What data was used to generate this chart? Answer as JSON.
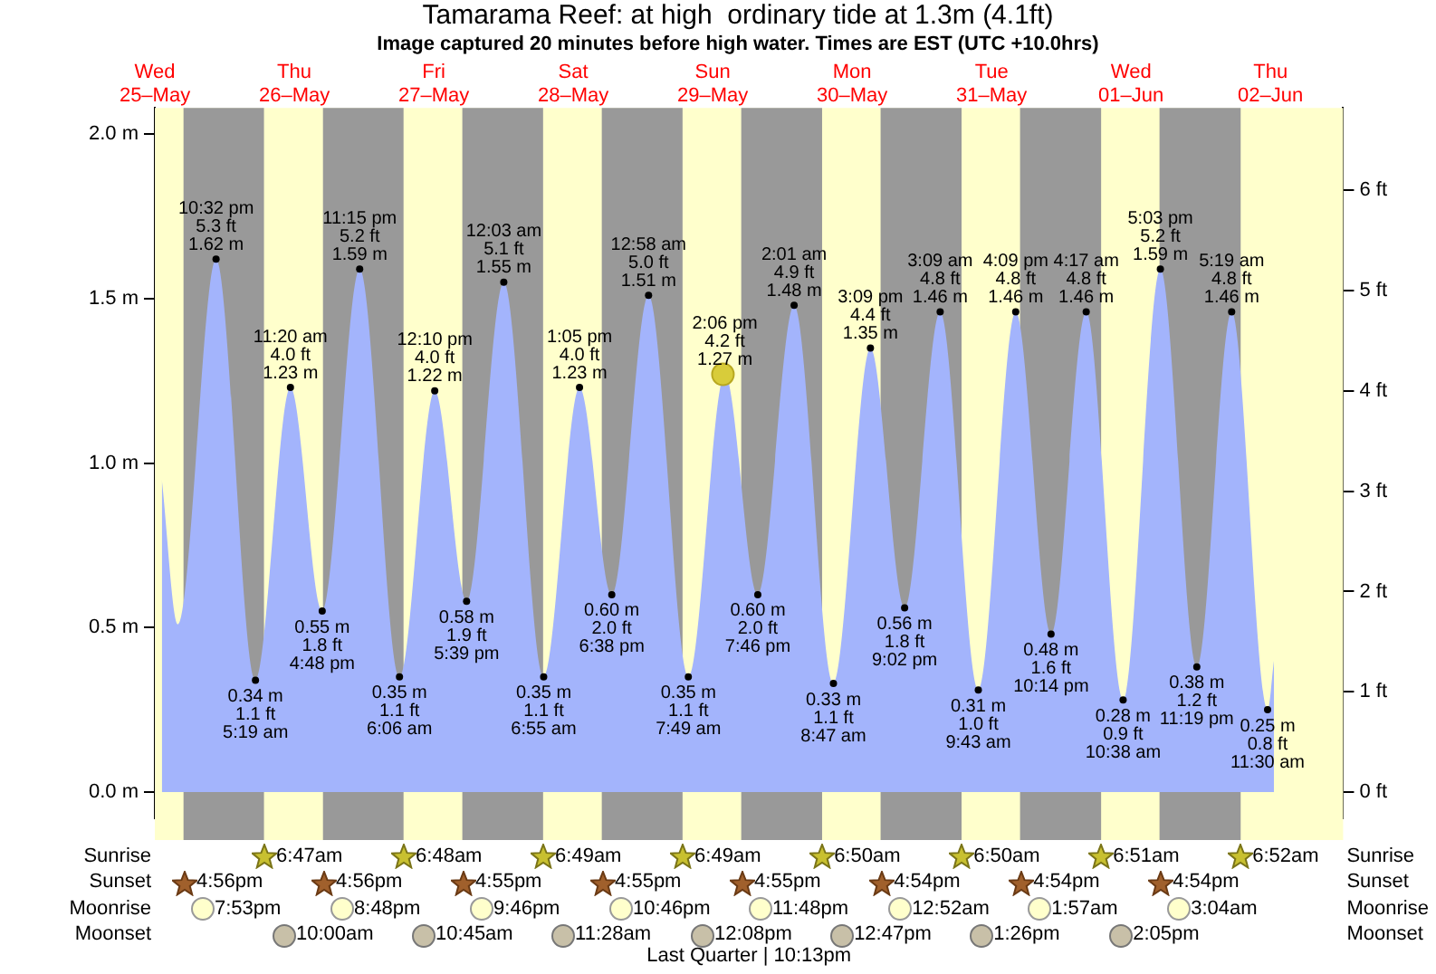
{
  "chart_data": {
    "type": "area",
    "title": "Tamarama Reef: at high  ordinary tide at 1.3m (4.1ft)",
    "subtitle": "Image captured 20 minutes before high water. Times are EST (UTC +10.0hrs)",
    "xlim": [
      "--05-25T12:00",
      "--06-03T00:30"
    ],
    "xticks": [
      {
        "value": "--05-25T12:00",
        "label": "Wed\n25–May"
      },
      {
        "value": "--05-26T12:00",
        "label": "Thu\n26–May"
      },
      {
        "value": "--05-27T12:00",
        "label": "Fri\n27–May"
      },
      {
        "value": "--05-28T12:00",
        "label": "Sat\n28–May"
      },
      {
        "value": "--05-29T12:00",
        "label": "Sun\n29–May"
      },
      {
        "value": "--05-30T12:00",
        "label": "Mon\n30–May"
      },
      {
        "value": "--05-31T12:00",
        "label": "Tue\n31–May"
      },
      {
        "value": "--06-01T12:00",
        "label": "Wed\n01–Jun"
      },
      {
        "value": "--06-02T12:00",
        "label": "Thu\n02–Jun"
      }
    ],
    "ylim": [
      -0.08,
      2.08
    ],
    "yticks": [
      {
        "value": 0,
        "label": "0.0 m"
      },
      {
        "value": 0.5,
        "label": "0.5 m"
      },
      {
        "value": 1,
        "label": "1.0 m"
      },
      {
        "value": 1.5,
        "label": "1.5 m"
      },
      {
        "value": 2,
        "label": "2.0 m"
      }
    ],
    "y2lim": [
      -0.26,
      6.82
    ],
    "y2ticks": [
      {
        "value": 0,
        "label": "0 ft"
      },
      {
        "value": 1,
        "label": "1 ft"
      },
      {
        "value": 2,
        "label": "2 ft"
      },
      {
        "value": 3,
        "label": "3 ft"
      },
      {
        "value": 4,
        "label": "4 ft"
      },
      {
        "value": 5,
        "label": "5 ft"
      },
      {
        "value": 6,
        "label": "6 ft"
      }
    ],
    "grid": false,
    "legend": false,
    "marker": "circle",
    "series": [
      {
        "type": "area",
        "color": "#a3b4fc",
        "x": [
          "--05-25T13:12",
          "--05-25T16:00",
          "--05-25T22:32",
          "--05-26T05:19",
          "--05-26T11:20",
          "--05-26T16:48",
          "--05-26T23:15",
          "--05-27T06:06",
          "--05-27T12:10",
          "--05-27T17:39",
          "--05-28T00:03",
          "--05-28T06:55",
          "--05-28T13:05",
          "--05-28T18:38",
          "--05-29T00:58",
          "--05-29T07:49",
          "--05-29T14:06",
          "--05-29T19:46",
          "--05-30T02:01",
          "--05-30T08:47",
          "--05-30T15:09",
          "--05-30T21:02",
          "--05-31T03:09",
          "--05-31T09:43",
          "--05-31T16:09",
          "--05-31T22:14",
          "--06-01T04:17",
          "--06-01T10:38",
          "--06-01T17:03",
          "--06-01T23:19",
          "--06-02T05:19",
          "--06-02T11:30",
          "--06-02T12:36"
        ],
        "values": [
          0.95,
          0.51,
          1.62,
          0.34,
          1.23,
          0.55,
          1.59,
          0.35,
          1.22,
          0.58,
          1.55,
          0.35,
          1.23,
          0.6,
          1.51,
          0.35,
          1.27,
          0.6,
          1.48,
          0.33,
          1.35,
          0.56,
          1.46,
          0.31,
          1.46,
          0.48,
          1.46,
          0.28,
          1.59,
          0.38,
          1.46,
          0.25,
          0.4
        ],
        "value_labels": [
          null,
          null,
          "10:32 pm\n5.3 ft\n1.62 m",
          "0.34 m\n1.1 ft\n5:19 am",
          "11:20 am\n4.0 ft\n1.23 m",
          "0.55 m\n1.8 ft\n4:48 pm",
          "11:15 pm\n5.2 ft\n1.59 m",
          "0.35 m\n1.1 ft\n6:06 am",
          "12:10 pm\n4.0 ft\n1.22 m",
          "0.58 m\n1.9 ft\n5:39 pm",
          "12:03 am\n5.1 ft\n1.55 m",
          "0.35 m\n1.1 ft\n6:55 am",
          "1:05 pm\n4.0 ft\n1.23 m",
          "0.60 m\n2.0 ft\n6:38 pm",
          "12:58 am\n5.0 ft\n1.51 m",
          "0.35 m\n1.1 ft\n7:49 am",
          "2:06 pm\n4.2 ft\n1.27 m",
          "0.60 m\n2.0 ft\n7:46 pm",
          "2:01 am\n4.9 ft\n1.48 m",
          "0.33 m\n1.1 ft\n8:47 am",
          "3:09 pm\n4.4 ft\n1.35 m",
          "0.56 m\n1.8 ft\n9:02 pm",
          "3:09 am\n4.8 ft\n1.46 m",
          "0.31 m\n1.0 ft\n9:43 am",
          "4:09 pm\n4.8 ft\n1.46 m",
          "0.48 m\n1.6 ft\n10:14 pm",
          "4:17 am\n4.8 ft\n1.46 m",
          "0.28 m\n0.9 ft\n10:38 am",
          "5:03 pm\n5.2 ft\n1.59 m",
          "0.38 m\n1.2 ft\n11:19 pm",
          "5:19 am\n4.8 ft\n1.46 m",
          "0.25 m\n0.8 ft\n11:30 am",
          null
        ]
      },
      {
        "type": "scatter",
        "color": "#d8cc3a",
        "x": [
          "--05-29T13:46"
        ],
        "values": [
          1.27
        ]
      }
    ],
    "bands": [
      {
        "axis": "x",
        "from": "--05-25T16:56",
        "to": "--05-26T06:47",
        "color": "#999999"
      },
      {
        "axis": "x",
        "from": "--05-26T16:56",
        "to": "--05-27T06:48",
        "color": "#999999"
      },
      {
        "axis": "x",
        "from": "--05-27T16:55",
        "to": "--05-28T06:49",
        "color": "#999999"
      },
      {
        "axis": "x",
        "from": "--05-28T16:55",
        "to": "--05-29T06:49",
        "color": "#999999"
      },
      {
        "axis": "x",
        "from": "--05-29T16:55",
        "to": "--05-30T06:50",
        "color": "#999999"
      },
      {
        "axis": "x",
        "from": "--05-30T16:54",
        "to": "--05-31T06:50",
        "color": "#999999"
      },
      {
        "axis": "x",
        "from": "--05-31T16:54",
        "to": "--06-01T06:51",
        "color": "#999999"
      },
      {
        "axis": "x",
        "from": "--06-01T16:54",
        "to": "--06-02T06:52",
        "color": "#999999"
      }
    ],
    "annotations": [
      "Last Quarter | 10:13pm",
      "Sunrise",
      "6:47am",
      "6:48am",
      "6:49am",
      "6:49am",
      "6:50am",
      "6:50am",
      "6:51am",
      "6:52am",
      "Sunset",
      "4:56pm",
      "4:56pm",
      "4:55pm",
      "4:55pm",
      "4:55pm",
      "4:54pm",
      "4:54pm",
      "4:54pm",
      "Moonrise",
      "7:53pm",
      "8:48pm",
      "9:46pm",
      "10:46pm",
      "11:48pm",
      "12:52am",
      "1:57am",
      "3:04am",
      "Moonset",
      "10:00am",
      "10:45am",
      "11:28am",
      "12:08pm",
      "12:47pm",
      "1:26pm",
      "2:05pm"
    ]
  }
}
